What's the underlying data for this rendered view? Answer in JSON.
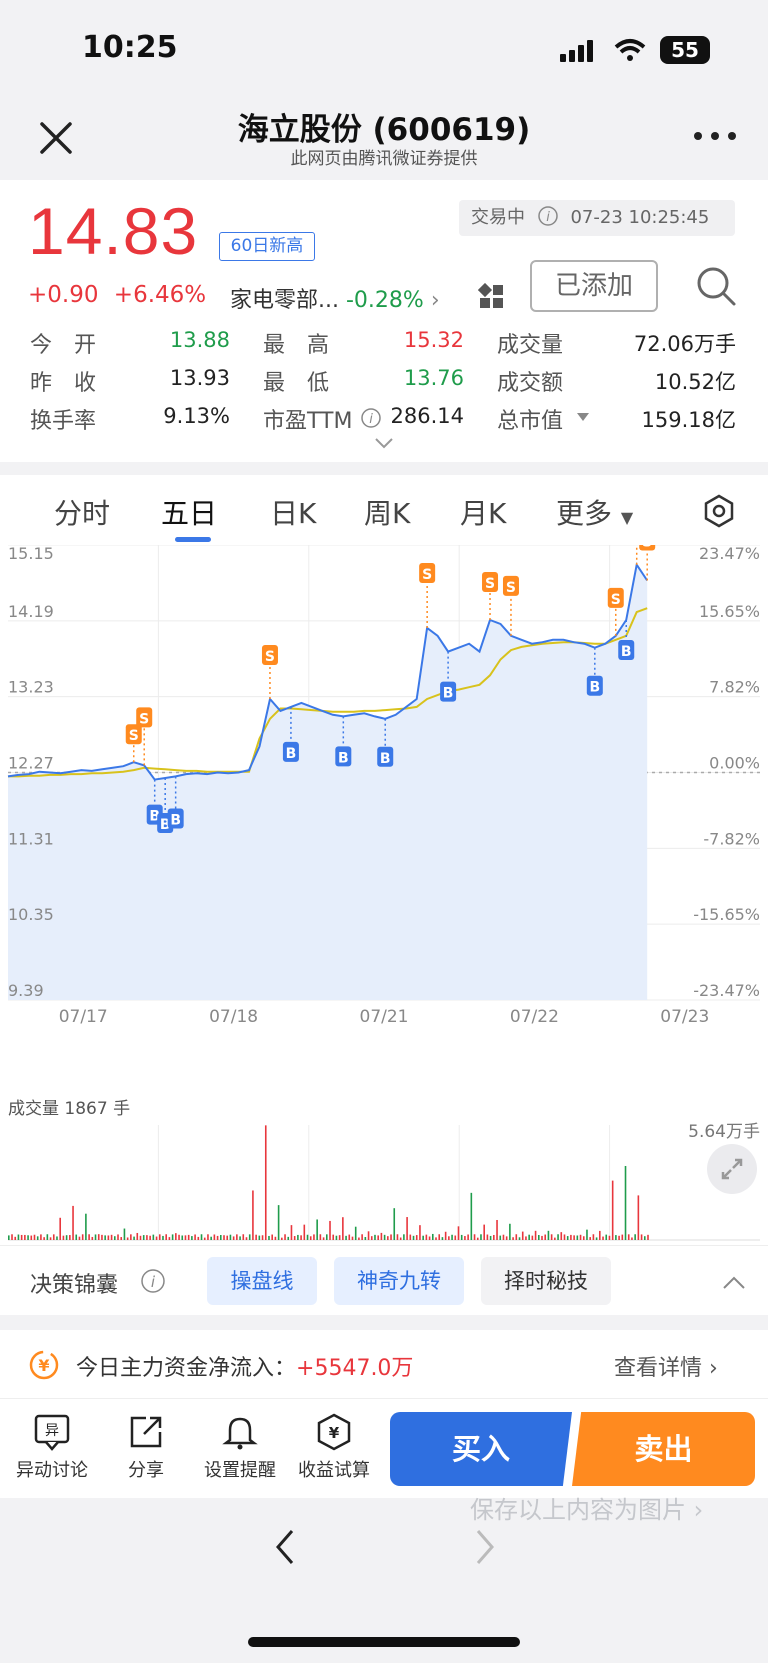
{
  "status_bar": {
    "time": "10:25",
    "battery": "55"
  },
  "nav": {
    "title": "海立股份 (600619)",
    "subtitle": "此网页由腾讯微证券提供"
  },
  "quote": {
    "price": "14.83",
    "badge": "60日新高",
    "trade_status": "交易中",
    "trade_time": "07-23 10:25:45",
    "change": "+0.90",
    "change_pct": "+6.46%",
    "sector_name": "家电零部...",
    "sector_change": "-0.28%",
    "added_label": "已添加",
    "stats": {
      "open_label": "今　开",
      "open": "13.88",
      "high_label": "最　高",
      "high": "15.32",
      "volume_label": "成交量",
      "volume": "72.06万手",
      "prev_close_label": "昨　收",
      "prev_close": "13.93",
      "low_label": "最　低",
      "low": "13.76",
      "amount_label": "成交额",
      "amount": "10.52亿",
      "turnover_label": "换手率",
      "turnover": "9.13%",
      "pe_label": "市盈TTM",
      "pe": "286.14",
      "market_cap_label": "总市值",
      "market_cap": "159.18亿"
    }
  },
  "tabs": {
    "t1": "分时",
    "t2": "五日",
    "t3": "日K",
    "t4": "周K",
    "t5": "月K",
    "t6": "更多"
  },
  "chart_data": {
    "type": "line",
    "y_left_ticks": [
      "15.15",
      "14.19",
      "13.23",
      "12.27",
      "11.31",
      "10.35",
      "9.39"
    ],
    "y_right_ticks": [
      "23.47%",
      "15.65%",
      "7.82%",
      "0.00%",
      "-7.82%",
      "-15.65%",
      "-23.47%"
    ],
    "x_ticks": [
      "07/17",
      "07/18",
      "07/21",
      "07/22",
      "07/23"
    ],
    "ylim": [
      9.39,
      15.15
    ],
    "baseline": 12.27,
    "series": [
      {
        "values": [
          12.22,
          12.24,
          12.25,
          12.28,
          12.27,
          12.26,
          12.28,
          12.3,
          12.29,
          12.31,
          12.33,
          12.35,
          12.4,
          12.36,
          12.18,
          12.2,
          12.22,
          12.25,
          12.26,
          12.25,
          12.27,
          12.26,
          12.27,
          12.3,
          12.6,
          13.2,
          13.05,
          13.1,
          13.15,
          13.1,
          13.05,
          13.0,
          12.98,
          13.0,
          13.02,
          12.98,
          12.95,
          13.0,
          13.1,
          13.2,
          14.1,
          14.0,
          13.8,
          13.85,
          13.9,
          13.8,
          14.2,
          14.15,
          14.0,
          13.95,
          13.9,
          13.92,
          13.95,
          13.95,
          13.92,
          13.9,
          13.85,
          13.9,
          14.0,
          14.2,
          14.9,
          14.7
        ]
      },
      {
        "values": [
          12.22,
          12.22,
          12.23,
          12.23,
          12.24,
          12.24,
          12.25,
          12.25,
          12.26,
          12.26,
          12.27,
          12.28,
          12.3,
          12.33,
          12.32,
          12.31,
          12.3,
          12.29,
          12.29,
          12.28,
          12.28,
          12.28,
          12.28,
          12.28,
          12.7,
          12.95,
          13.08,
          13.08,
          13.07,
          13.06,
          13.05,
          13.04,
          13.04,
          13.04,
          13.05,
          13.05,
          13.06,
          13.07,
          13.08,
          13.1,
          13.2,
          13.25,
          13.3,
          13.32,
          13.35,
          13.38,
          13.5,
          13.7,
          13.82,
          13.86,
          13.88,
          13.9,
          13.91,
          13.92,
          13.92,
          13.91,
          13.9,
          13.9,
          13.95,
          14.0,
          14.3,
          14.35
        ]
      }
    ],
    "volume_label": "成交量 1867 手",
    "volume_max_label": "5.64万手",
    "volume_spikes": [
      0.08,
      0.05,
      0.04,
      0.06,
      0.3,
      0.31,
      0.24,
      0.08,
      0.05,
      0.1,
      0.07,
      0.05,
      0.04,
      0.06,
      0.03,
      0.05,
      0.04,
      0.05,
      0.55,
      1.0,
      0.35,
      0.25,
      0.15,
      0.18,
      0.22,
      0.3,
      0.12,
      0.08,
      0.1,
      0.35,
      0.2,
      0.15,
      0.1,
      0.08,
      0.12,
      0.55,
      0.2,
      0.18,
      0.15,
      0.12,
      0.1,
      0.08,
      0.06,
      0.1,
      0.08,
      0.7,
      0.95,
      0.4,
      0.2
    ]
  },
  "markers": {
    "s": "S",
    "b": "B"
  },
  "tools": {
    "label": "决策锦囊",
    "b1": "操盘线",
    "b2": "神奇九转",
    "b3": "择时秘技"
  },
  "fund": {
    "label": "今日主力资金净流入：",
    "value": "+5547.0万",
    "detail": "查看详情 ›"
  },
  "bottom": {
    "discuss": "异动讨论",
    "share": "分享",
    "alert": "设置提醒",
    "calc": "收益试算",
    "buy": "买入",
    "sell": "卖出",
    "save": "保存以上内容为图片 ›"
  },
  "colors": {
    "up": "#e8363c",
    "down": "#1f9c4b",
    "accent": "#3b78e7",
    "sell": "#ff8a1f",
    "avg_line": "#d8c21c"
  }
}
